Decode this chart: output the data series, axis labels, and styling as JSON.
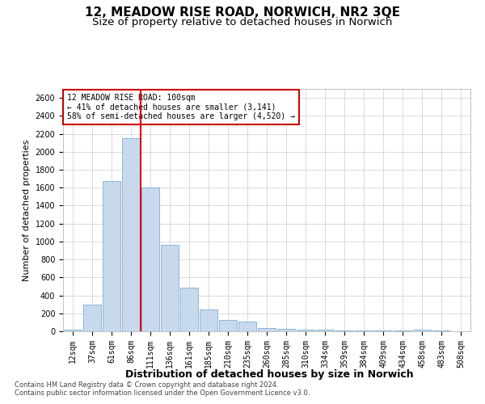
{
  "title": "12, MEADOW RISE ROAD, NORWICH, NR2 3QE",
  "subtitle": "Size of property relative to detached houses in Norwich",
  "xlabel": "Distribution of detached houses by size in Norwich",
  "ylabel": "Number of detached properties",
  "bar_labels": [
    "12sqm",
    "37sqm",
    "61sqm",
    "86sqm",
    "111sqm",
    "136sqm",
    "161sqm",
    "185sqm",
    "210sqm",
    "235sqm",
    "260sqm",
    "285sqm",
    "310sqm",
    "334sqm",
    "359sqm",
    "384sqm",
    "409sqm",
    "434sqm",
    "458sqm",
    "483sqm",
    "508sqm"
  ],
  "bar_values": [
    20,
    295,
    1670,
    2150,
    1600,
    960,
    490,
    240,
    130,
    105,
    35,
    30,
    20,
    18,
    12,
    10,
    8,
    5,
    20,
    5,
    0
  ],
  "bar_color": "#c8d9ee",
  "bar_edge_color": "#7bafd4",
  "ylim": [
    0,
    2700
  ],
  "yticks": [
    0,
    200,
    400,
    600,
    800,
    1000,
    1200,
    1400,
    1600,
    1800,
    2000,
    2200,
    2400,
    2600
  ],
  "vline_color": "#dd0000",
  "annotation_text": "12 MEADOW RISE ROAD: 100sqm\n← 41% of detached houses are smaller (3,141)\n58% of semi-detached houses are larger (4,520) →",
  "annotation_box_color": "#ffffff",
  "annotation_box_edge_color": "#cc0000",
  "footnote1": "Contains HM Land Registry data © Crown copyright and database right 2024.",
  "footnote2": "Contains public sector information licensed under the Open Government Licence v3.0.",
  "background_color": "#ffffff",
  "grid_color": "#cccccc",
  "title_fontsize": 11,
  "subtitle_fontsize": 9.5,
  "xlabel_fontsize": 9,
  "ylabel_fontsize": 8,
  "tick_fontsize": 7,
  "annot_fontsize": 7,
  "footnote_fontsize": 6
}
